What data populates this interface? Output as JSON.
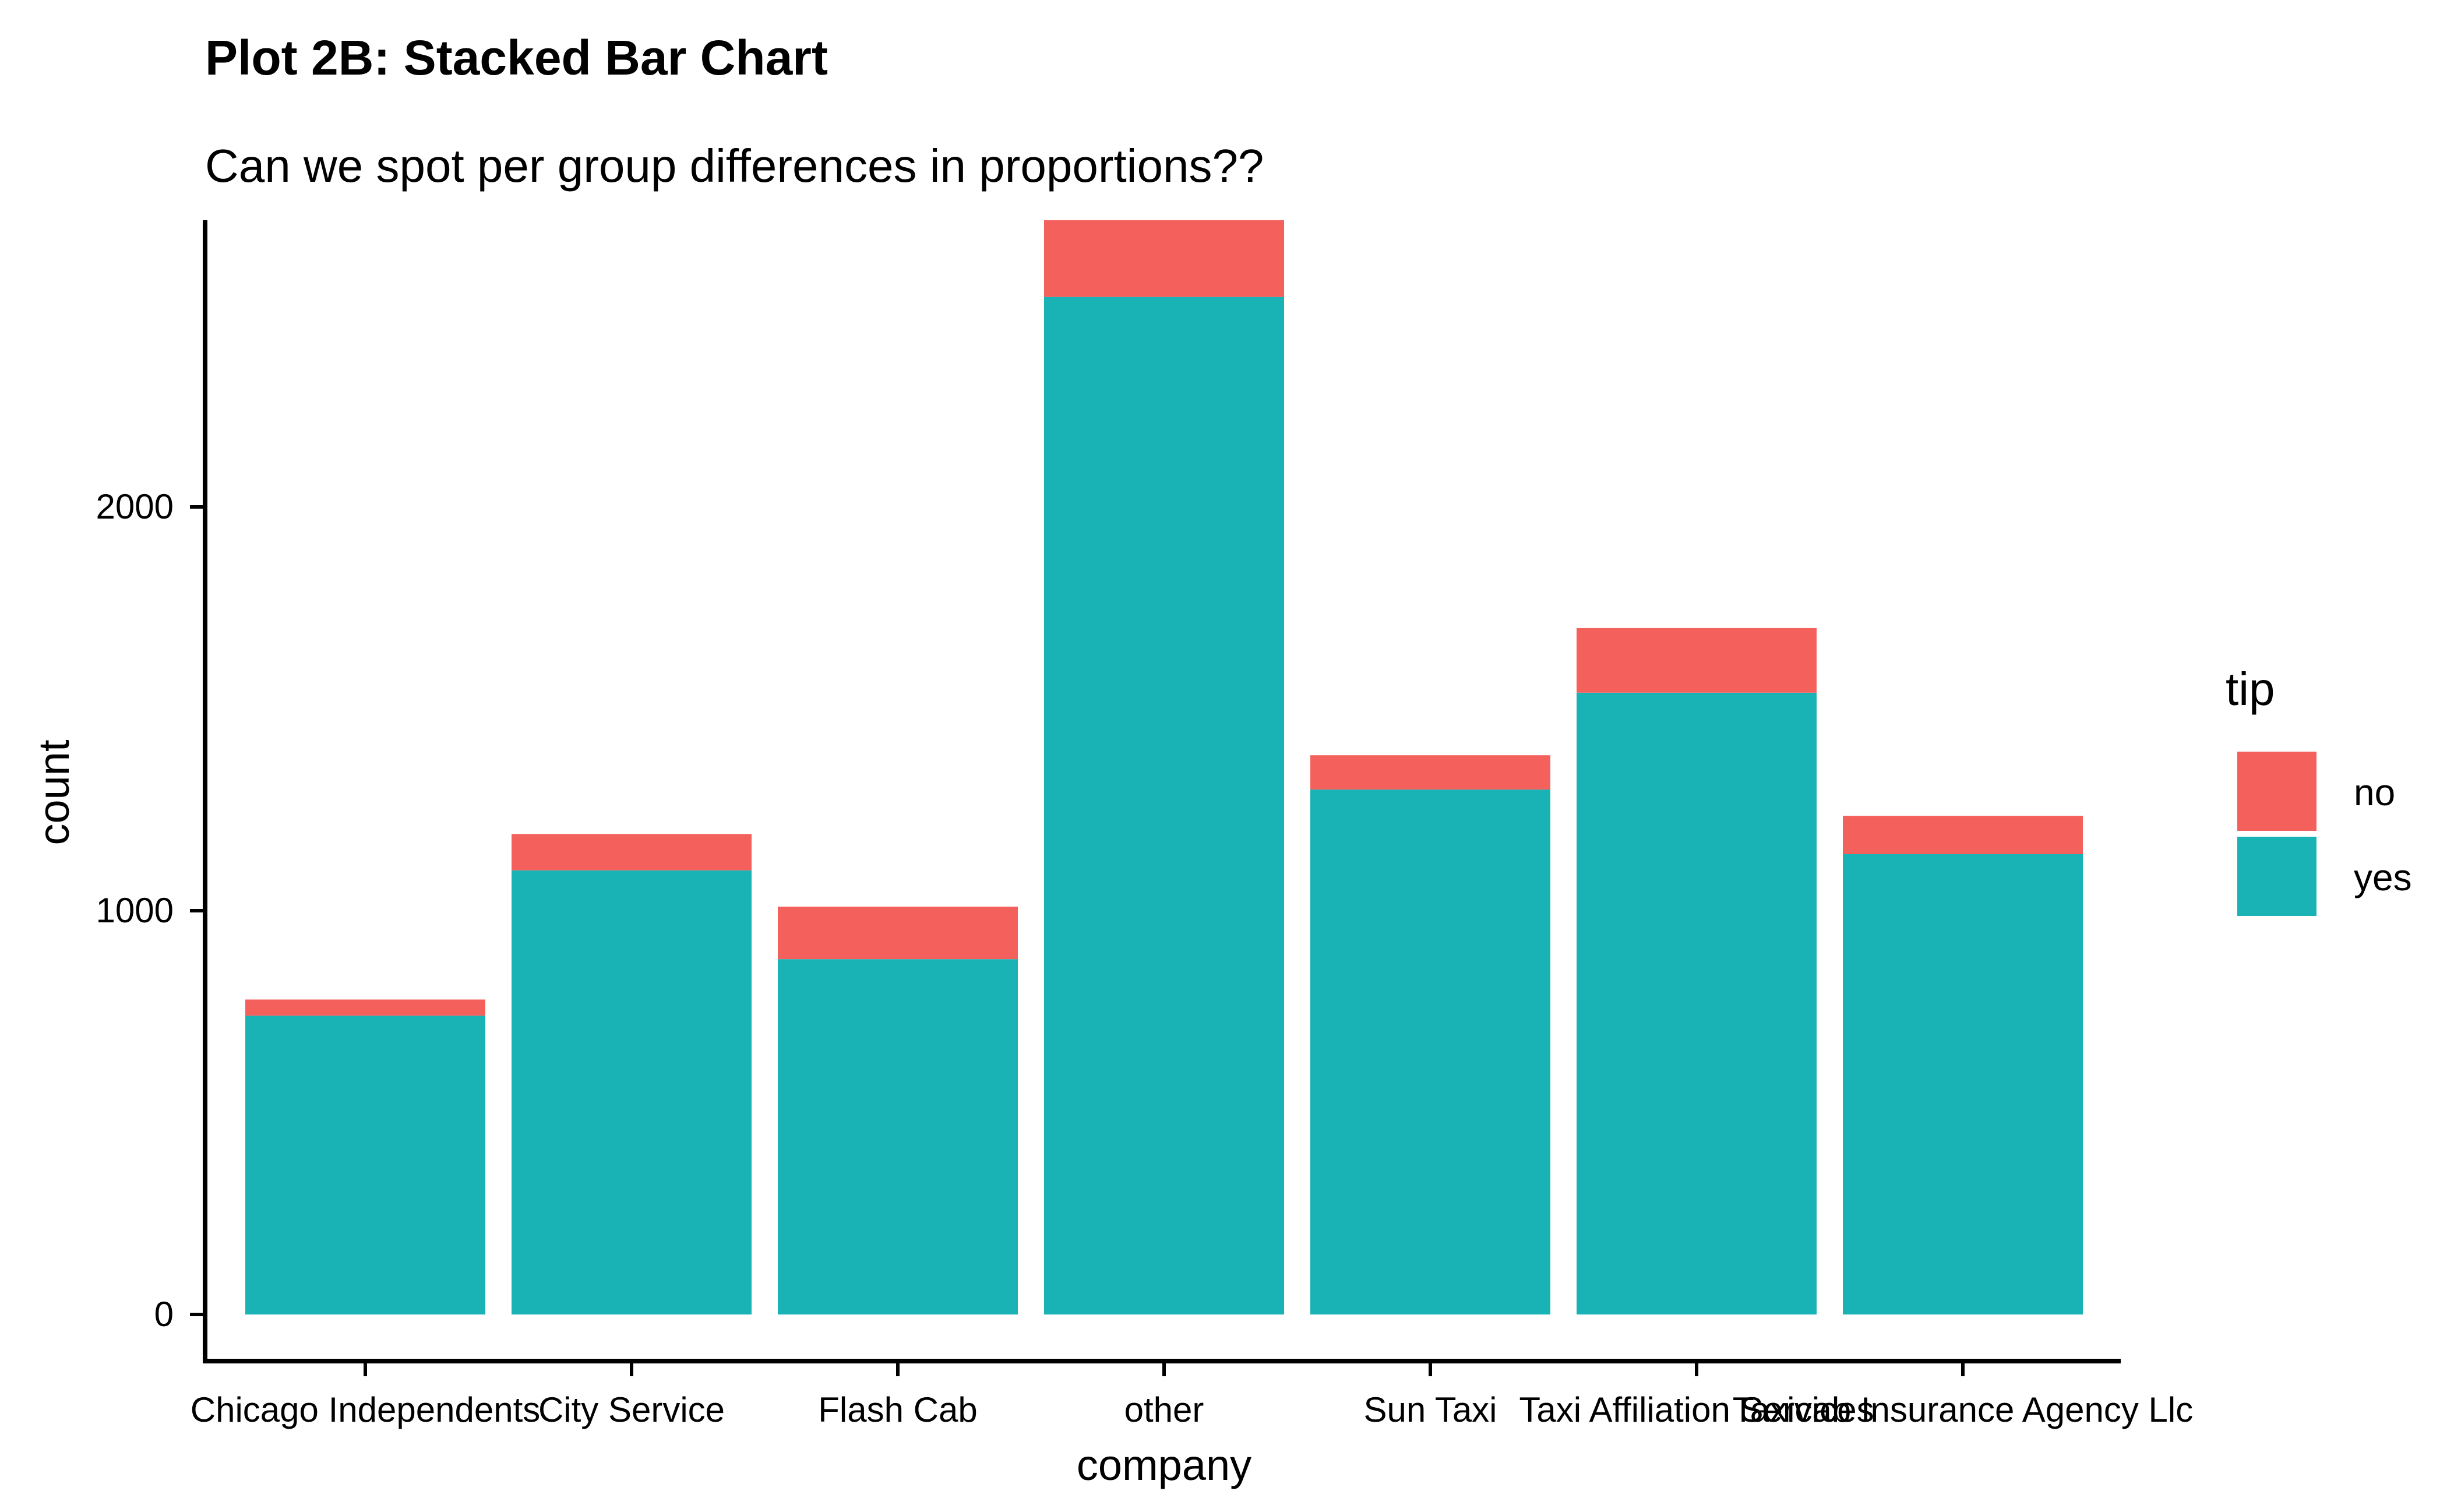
{
  "chart_data": {
    "type": "bar",
    "stacked": true,
    "title": "Plot 2B: Stacked Bar Chart",
    "subtitle": "Can we spot per group differences in proportions??",
    "xlabel": "company",
    "ylabel": "count",
    "categories": [
      "Chicago Independents",
      "City Service",
      "Flash Cab",
      "other",
      "Sun Taxi",
      "Taxi Affiliation Services",
      "Taxicab Insurance Agency Llc"
    ],
    "series": [
      {
        "name": "yes",
        "color": "#19B3B6",
        "values": [
          740,
          1100,
          880,
          2520,
          1300,
          1540,
          1140
        ]
      },
      {
        "name": "no",
        "color": "#F4605C",
        "values": [
          40,
          90,
          130,
          190,
          85,
          160,
          95
        ]
      }
    ],
    "ylim": [
      0,
      2710
    ],
    "yticks": [
      0,
      1000,
      2000
    ],
    "legend": {
      "title": "tip",
      "position": "right",
      "entries": [
        "no",
        "yes"
      ]
    },
    "grid": false
  }
}
